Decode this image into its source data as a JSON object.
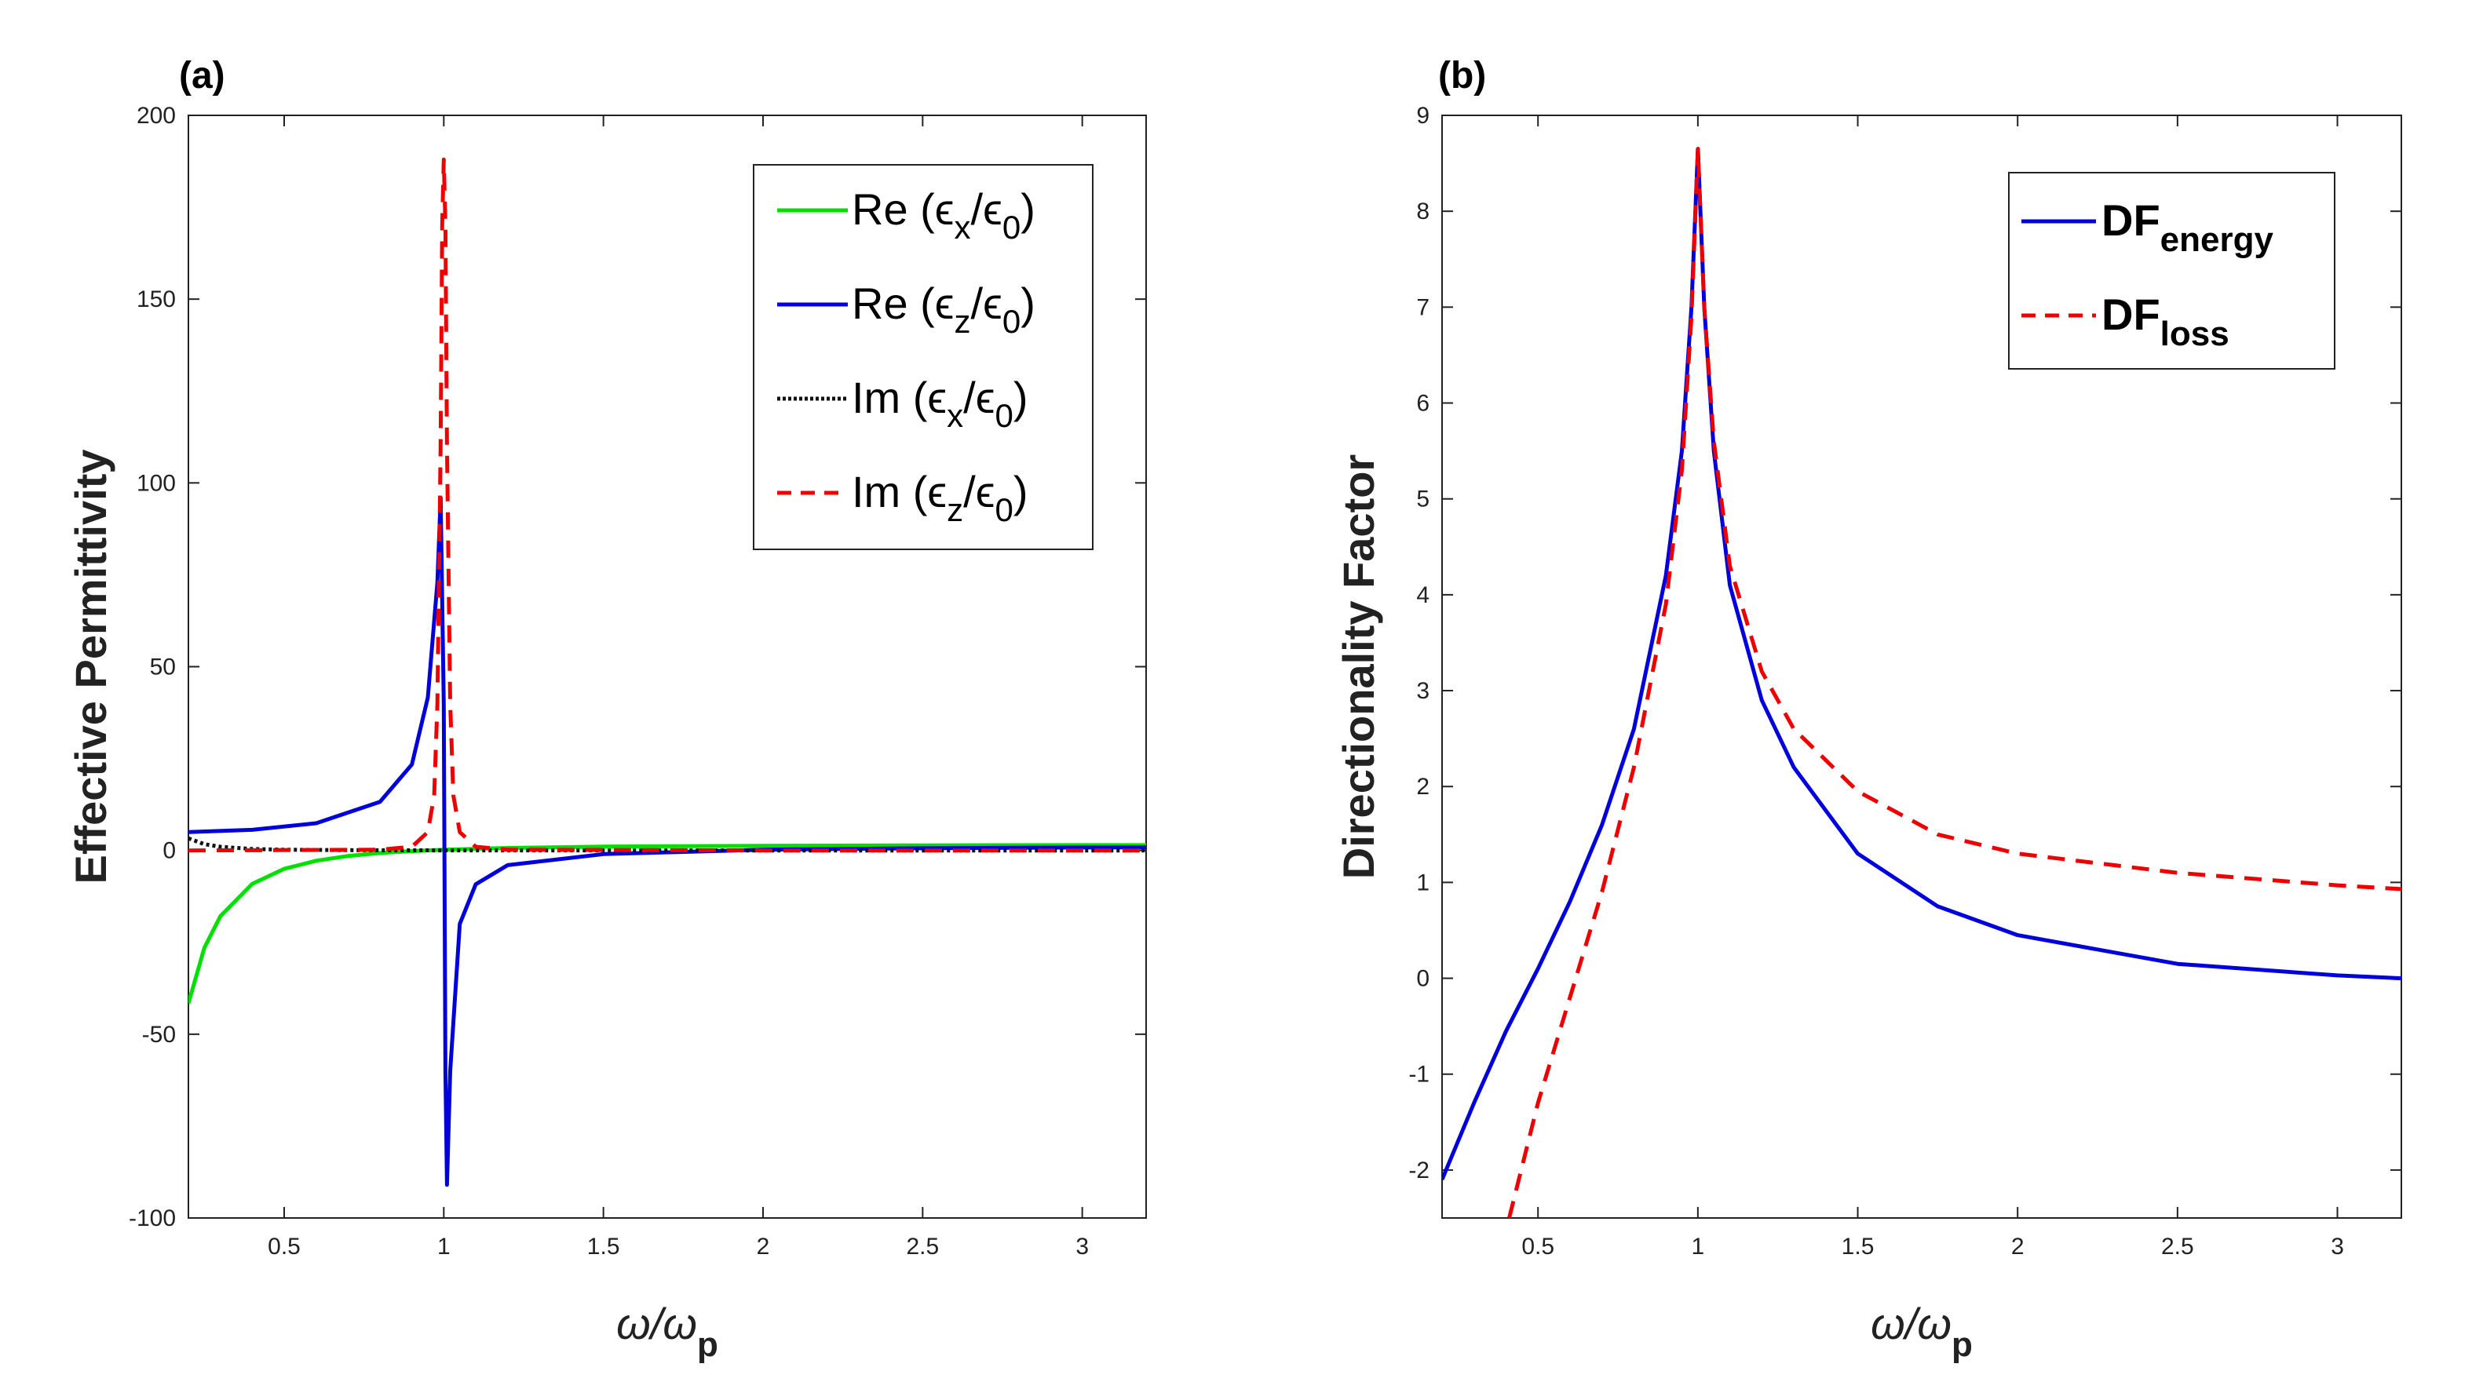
{
  "chart_data": [
    {
      "panel_label": "(a)",
      "type": "line",
      "title": "",
      "xlabel": {
        "symbol": "ω/ω",
        "sub": "p"
      },
      "ylabel": "Effective Permittivity",
      "xlim": [
        0.2,
        3.2
      ],
      "ylim": [
        -100,
        200
      ],
      "xticks": [
        0.5,
        1,
        1.5,
        2,
        2.5,
        3
      ],
      "xtick_labels": [
        "0.5",
        "1",
        "1.5",
        "2",
        "2.5",
        "3"
      ],
      "yticks": [
        -100,
        -50,
        0,
        50,
        100,
        150,
        200
      ],
      "ytick_labels": [
        "-100",
        "-50",
        "0",
        "50",
        "100",
        "150",
        "200"
      ],
      "legend_position": "top-right",
      "series": [
        {
          "name": "Re (εx/ε0)",
          "legend_prefix": "Re (ϵ",
          "legend_sub1": "x",
          "legend_mid": "/ϵ",
          "legend_sub2": "0",
          "legend_suffix": ")",
          "color": "#00e000",
          "dash": "solid",
          "x": [
            0.2,
            0.25,
            0.3,
            0.4,
            0.5,
            0.6,
            0.7,
            0.8,
            0.9,
            1.0,
            1.2,
            1.5,
            2.0,
            2.5,
            3.0,
            3.2
          ],
          "y": [
            -41.6,
            -26.5,
            -17.9,
            -9.1,
            -5.0,
            -2.8,
            -1.5,
            -0.7,
            -0.17,
            0.2,
            0.67,
            1.04,
            1.28,
            1.38,
            1.44,
            1.45
          ]
        },
        {
          "name": "Re (εz/ε0)",
          "legend_prefix": "Re (ϵ",
          "legend_sub1": "z",
          "legend_mid": "/ϵ",
          "legend_sub2": "0",
          "legend_suffix": ")",
          "color": "#0000dd",
          "dash": "solid",
          "x": [
            0.2,
            0.4,
            0.6,
            0.8,
            0.9,
            0.95,
            0.98,
            0.99,
            1.0,
            1.005,
            1.01,
            1.02,
            1.05,
            1.1,
            1.2,
            1.5,
            2.0,
            2.5,
            3.0,
            3.2
          ],
          "y": [
            5.0,
            5.6,
            7.4,
            13.2,
            23.4,
            41.6,
            73.0,
            96.0,
            40.0,
            -60.0,
            -91.0,
            -60.0,
            -20.0,
            -9.2,
            -4.0,
            -1.0,
            0.2,
            0.6,
            0.8,
            0.85
          ]
        },
        {
          "name": "Im (εx/ε0)",
          "legend_prefix": "Im (ϵ",
          "legend_sub1": "x",
          "legend_mid": "/ϵ",
          "legend_sub2": "0",
          "legend_suffix": ")",
          "color": "#111111",
          "dash": "dotted",
          "x": [
            0.2,
            0.25,
            0.3,
            0.4,
            0.5,
            0.7,
            1.0,
            1.5,
            2.0,
            3.2
          ],
          "y": [
            3.3,
            1.7,
            1.0,
            0.4,
            0.2,
            0.07,
            0.02,
            0.01,
            0.0,
            0.0
          ]
        },
        {
          "name": "Im (εz/ε0)",
          "legend_prefix": "Im (ϵ",
          "legend_sub1": "z",
          "legend_mid": "/ϵ",
          "legend_sub2": "0",
          "legend_suffix": ")",
          "color": "#ee0000",
          "dash": "dashed",
          "x": [
            0.2,
            0.8,
            0.9,
            0.95,
            0.97,
            0.98,
            0.99,
            0.995,
            1.0,
            1.005,
            1.01,
            1.02,
            1.03,
            1.05,
            1.1,
            1.2,
            2.0,
            3.2
          ],
          "y": [
            0.0,
            0.2,
            1.0,
            5.0,
            15.0,
            40.0,
            110.0,
            170.0,
            188.0,
            170.0,
            110.0,
            40.0,
            15.0,
            5.0,
            1.0,
            0.2,
            0.0,
            0.0
          ]
        }
      ]
    },
    {
      "panel_label": "(b)",
      "type": "line",
      "title": "",
      "xlabel": {
        "symbol": "ω/ω",
        "sub": "p"
      },
      "ylabel": "Directionality Factor",
      "xlim": [
        0.2,
        3.2
      ],
      "ylim": [
        -2.5,
        9
      ],
      "xticks": [
        0.5,
        1,
        1.5,
        2,
        2.5,
        3
      ],
      "xtick_labels": [
        "0.5",
        "1",
        "1.5",
        "2",
        "2.5",
        "3"
      ],
      "yticks": [
        -2,
        -1,
        0,
        1,
        2,
        3,
        4,
        5,
        6,
        7,
        8,
        9
      ],
      "ytick_labels": [
        "-2",
        "-1",
        "0",
        "1",
        "2",
        "3",
        "4",
        "5",
        "6",
        "7",
        "8",
        "9"
      ],
      "legend_position": "top-right",
      "series": [
        {
          "name": "DF energy",
          "legend_main": "DF",
          "legend_sub": "energy",
          "color": "#0000dd",
          "dash": "solid",
          "x": [
            0.2,
            0.3,
            0.4,
            0.5,
            0.6,
            0.7,
            0.8,
            0.9,
            0.95,
            0.98,
            1.0,
            1.02,
            1.05,
            1.1,
            1.2,
            1.3,
            1.5,
            1.75,
            2.0,
            2.5,
            3.0,
            3.2
          ],
          "y": [
            -2.1,
            -1.3,
            -0.55,
            0.1,
            0.8,
            1.6,
            2.6,
            4.2,
            5.5,
            7.0,
            8.65,
            7.0,
            5.5,
            4.1,
            2.9,
            2.2,
            1.3,
            0.75,
            0.45,
            0.15,
            0.03,
            0.0
          ]
        },
        {
          "name": "DF loss",
          "legend_main": "DF",
          "legend_sub": "loss",
          "color": "#ee0000",
          "dash": "dashed",
          "x": [
            0.41,
            0.5,
            0.6,
            0.7,
            0.8,
            0.9,
            0.95,
            0.98,
            1.0,
            1.02,
            1.05,
            1.1,
            1.2,
            1.3,
            1.5,
            1.75,
            2.0,
            2.5,
            3.0,
            3.2
          ],
          "y": [
            -2.5,
            -1.3,
            -0.2,
            0.9,
            2.2,
            3.9,
            5.3,
            6.9,
            8.65,
            7.0,
            5.6,
            4.3,
            3.2,
            2.6,
            1.95,
            1.5,
            1.3,
            1.1,
            0.97,
            0.93
          ]
        }
      ]
    }
  ]
}
